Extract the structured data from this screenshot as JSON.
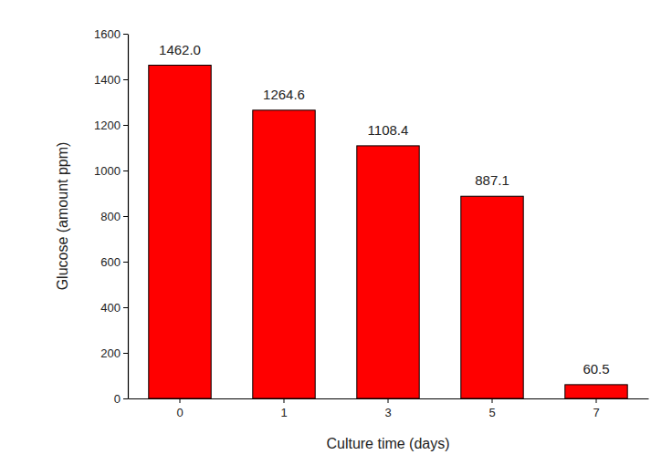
{
  "chart_data": {
    "type": "bar",
    "x_label": "Culture time (days)",
    "y_label": "Glucose (amount ppm)",
    "categories": [
      "0",
      "1",
      "3",
      "5",
      "7"
    ],
    "values": [
      1462.0,
      1264.6,
      1108.4,
      887.1,
      60.5
    ],
    "value_labels": [
      "1462.0",
      "1264.6",
      "1108.4",
      "887.1",
      "60.5"
    ],
    "color": "#ff0000",
    "ylim": [
      0,
      1600
    ],
    "yticks": [
      0,
      200,
      400,
      600,
      800,
      1000,
      1200,
      1400,
      1600
    ],
    "grid": false,
    "data_labels": true
  }
}
